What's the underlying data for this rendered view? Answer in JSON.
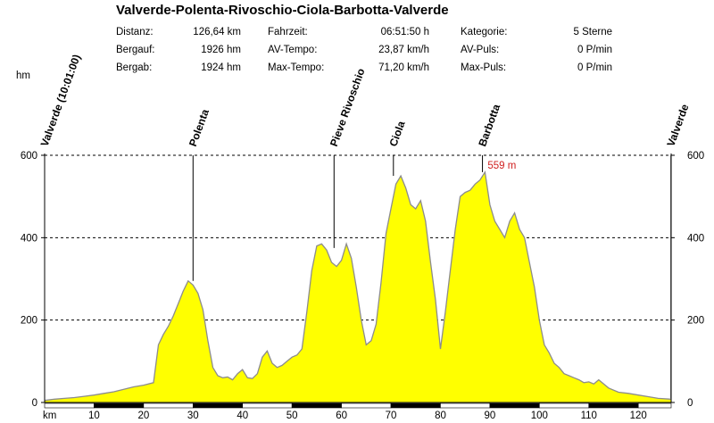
{
  "title": "Valverde-Polenta-Rivoschio-Ciola-Barbotta-Valverde",
  "stats": [
    {
      "label": "Distanz:",
      "value": "126,64 km"
    },
    {
      "label": "Bergauf:",
      "value": "1926 hm"
    },
    {
      "label": "Bergab:",
      "value": "1924 hm"
    },
    {
      "label": "Fahrzeit:",
      "value": "06:51:50 h"
    },
    {
      "label": "AV-Tempo:",
      "value": "23,87 km/h"
    },
    {
      "label": "Max-Tempo:",
      "value": "71,20 km/h"
    },
    {
      "label": "Kategorie:",
      "value": "5 Sterne"
    },
    {
      "label": "AV-Puls:",
      "value": "0 P/min"
    },
    {
      "label": "Max-Puls:",
      "value": "0 P/min"
    }
  ],
  "chart_data": {
    "type": "area",
    "xlabel": "km",
    "ylabel": "hm",
    "xlim": [
      0,
      126.64
    ],
    "ylim": [
      0,
      600
    ],
    "xticks": [
      10,
      20,
      30,
      40,
      50,
      60,
      70,
      80,
      90,
      100,
      110,
      120
    ],
    "yticks": [
      0,
      200,
      400,
      600
    ],
    "grid": "horizontal dashed",
    "fill_color": "#ffff00",
    "line_color": "#8c8c8c",
    "max_label": "559 m",
    "max_label_color": "#d02020",
    "waypoints": [
      {
        "name": "Valverde (10:01:00)",
        "x": 0,
        "y": 10
      },
      {
        "name": "Polenta",
        "x": 30,
        "y": 295
      },
      {
        "name": "Pieve Rivoschio",
        "x": 58.5,
        "y": 375
      },
      {
        "name": "Ciola",
        "x": 70.5,
        "y": 550
      },
      {
        "name": "Barbotta",
        "x": 88.5,
        "y": 559
      },
      {
        "name": "Valverde",
        "x": 126.6,
        "y": 10
      }
    ],
    "x": [
      0,
      2,
      4,
      6,
      8,
      10,
      12,
      14,
      16,
      18,
      20,
      22,
      23,
      24,
      25,
      26,
      27,
      28,
      29,
      30,
      31,
      32,
      33,
      34,
      35,
      36,
      37,
      38,
      39,
      40,
      41,
      42,
      43,
      44,
      45,
      46,
      47,
      48,
      49,
      50,
      51,
      52,
      53,
      54,
      55,
      56,
      57,
      58,
      59,
      60,
      61,
      62,
      63,
      64,
      65,
      66,
      67,
      68,
      69,
      70,
      71,
      72,
      73,
      74,
      75,
      76,
      77,
      78,
      79,
      80,
      81,
      82,
      83,
      84,
      85,
      86,
      87,
      88,
      89,
      90,
      91,
      92,
      93,
      94,
      95,
      96,
      97,
      98,
      99,
      100,
      101,
      102,
      103,
      104,
      105,
      106,
      107,
      108,
      109,
      110,
      111,
      112,
      114,
      116,
      118,
      120,
      122,
      124,
      126.64
    ],
    "y": [
      5,
      8,
      10,
      12,
      15,
      18,
      22,
      26,
      32,
      38,
      42,
      48,
      140,
      165,
      185,
      210,
      240,
      270,
      295,
      285,
      265,
      225,
      150,
      85,
      65,
      60,
      62,
      55,
      70,
      80,
      60,
      58,
      70,
      110,
      125,
      95,
      85,
      90,
      100,
      110,
      115,
      130,
      220,
      320,
      380,
      385,
      370,
      340,
      330,
      345,
      385,
      350,
      280,
      200,
      140,
      150,
      190,
      290,
      410,
      470,
      530,
      550,
      520,
      480,
      470,
      490,
      440,
      340,
      250,
      130,
      220,
      320,
      420,
      500,
      510,
      515,
      530,
      540,
      559,
      480,
      440,
      420,
      400,
      440,
      460,
      420,
      400,
      340,
      280,
      200,
      140,
      120,
      95,
      85,
      70,
      65,
      60,
      55,
      48,
      50,
      45,
      55,
      35,
      25,
      22,
      18,
      14,
      10,
      8
    ]
  }
}
